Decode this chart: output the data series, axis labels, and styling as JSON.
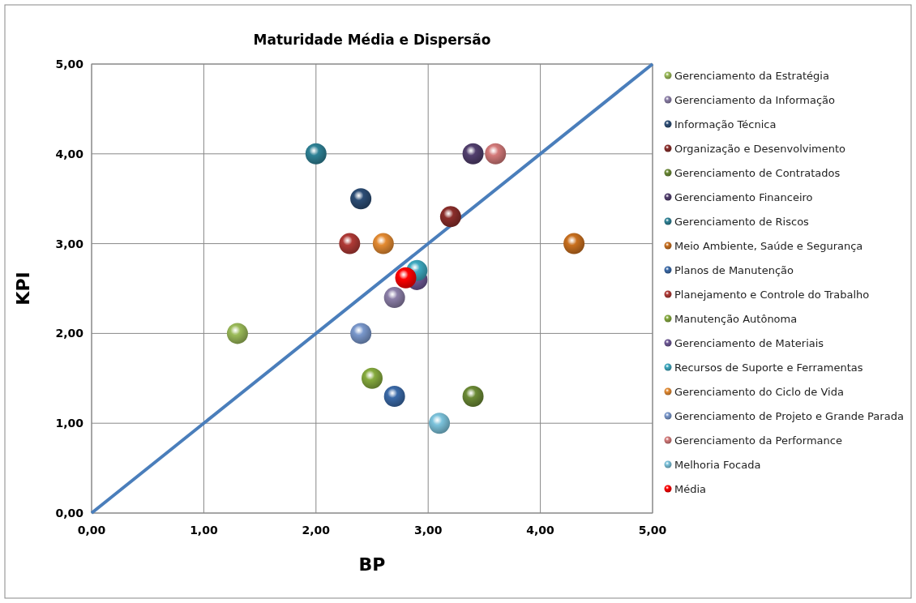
{
  "chart_data": {
    "type": "scatter",
    "title": "Maturidade Média e Dispersão",
    "xlabel": "BP",
    "ylabel": "KPI",
    "xlim": [
      0,
      5
    ],
    "ylim": [
      0,
      5
    ],
    "xticks": [
      {
        "value": 0,
        "label": "0,00"
      },
      {
        "value": 1,
        "label": "1,00"
      },
      {
        "value": 2,
        "label": "2,00"
      },
      {
        "value": 3,
        "label": "3,00"
      },
      {
        "value": 4,
        "label": "4,00"
      },
      {
        "value": 5,
        "label": "5,00"
      }
    ],
    "yticks": [
      {
        "value": 0,
        "label": "0,00"
      },
      {
        "value": 1,
        "label": "1,00"
      },
      {
        "value": 2,
        "label": "2,00"
      },
      {
        "value": 3,
        "label": "3,00"
      },
      {
        "value": 4,
        "label": "4,00"
      },
      {
        "value": 5,
        "label": "5,00"
      }
    ],
    "grid": true,
    "legend": "right",
    "marker": "circle",
    "series": [
      {
        "type": "line",
        "marker": "none",
        "color": "#4a7ebb",
        "x": [
          0,
          5
        ],
        "values": [
          0,
          5
        ]
      },
      {
        "name": "Gerenciamento da Estratégia",
        "color": "#9bbb59",
        "x": [
          1.3
        ],
        "values": [
          2.0
        ]
      },
      {
        "name": "Gerenciamento da Informação",
        "color": "#8c7fa8",
        "x": [
          2.7
        ],
        "values": [
          2.4
        ]
      },
      {
        "name": "Informação Técnica",
        "color": "#2c4d75",
        "x": [
          2.4
        ],
        "values": [
          3.5
        ]
      },
      {
        "name": "Organização e Desenvolvimento",
        "color": "#8b2e2b",
        "x": [
          3.2
        ],
        "values": [
          3.3
        ]
      },
      {
        "name": "Gerenciamento de Contratados",
        "color": "#6b8a35",
        "x": [
          3.4
        ],
        "values": [
          1.3
        ]
      },
      {
        "name": "Gerenciamento Financeiro",
        "color": "#523f6e",
        "x": [
          3.4
        ],
        "values": [
          4.0
        ]
      },
      {
        "name": "Gerenciamento de Riscos",
        "color": "#2f8296",
        "x": [
          2.0
        ],
        "values": [
          4.0
        ]
      },
      {
        "name": "Meio Ambiente, Saúde e Segurança",
        "color": "#c9701f",
        "x": [
          4.3
        ],
        "values": [
          3.0
        ]
      },
      {
        "name": "Planos de Manutenção",
        "color": "#3b6aa8",
        "x": [
          2.7
        ],
        "values": [
          1.3
        ]
      },
      {
        "name": "Planejamento e Controle do Trabalho",
        "color": "#b03a36",
        "x": [
          2.3
        ],
        "values": [
          3.0
        ]
      },
      {
        "name": "Manutenção Autônoma",
        "color": "#86ab3e",
        "x": [
          2.5
        ],
        "values": [
          1.5
        ]
      },
      {
        "name": "Gerenciamento de Materiais",
        "color": "#6e5896",
        "x": [
          2.9
        ],
        "values": [
          2.6
        ]
      },
      {
        "name": "Recursos de Suporte e Ferramentas",
        "color": "#3ea9c0",
        "x": [
          2.9
        ],
        "values": [
          2.7
        ]
      },
      {
        "name": "Gerenciamento do Ciclo de Vida",
        "color": "#e48b32",
        "x": [
          2.6
        ],
        "values": [
          3.0
        ]
      },
      {
        "name": "Gerenciamento de Projeto e Grande Parada",
        "color": "#7a98cc",
        "x": [
          2.4
        ],
        "values": [
          2.0
        ]
      },
      {
        "name": "Gerenciamento da Performance",
        "color": "#d47a7a",
        "x": [
          3.6
        ],
        "values": [
          4.0
        ]
      },
      {
        "name": "Melhoria Focada",
        "color": "#7cc3dc",
        "x": [
          3.1
        ],
        "values": [
          1.0
        ]
      },
      {
        "name": "Média",
        "color": "#ff0000",
        "x": [
          2.8
        ],
        "values": [
          2.62
        ]
      }
    ]
  }
}
